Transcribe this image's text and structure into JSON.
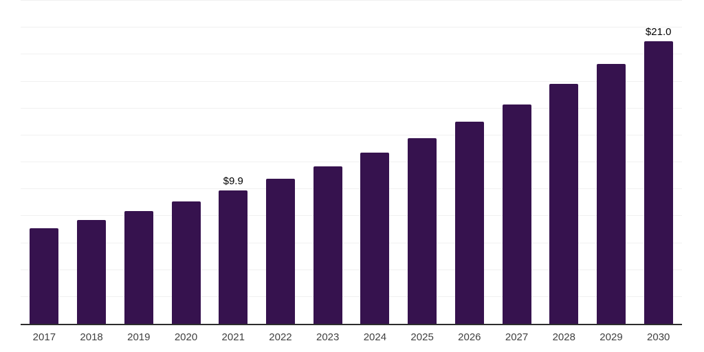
{
  "chart_data": {
    "type": "bar",
    "title": "",
    "xlabel": "",
    "ylabel": "",
    "categories": [
      "2017",
      "2018",
      "2019",
      "2020",
      "2021",
      "2022",
      "2023",
      "2024",
      "2025",
      "2026",
      "2027",
      "2028",
      "2029",
      "2030"
    ],
    "values": [
      7.1,
      7.7,
      8.4,
      9.1,
      9.9,
      10.8,
      11.7,
      12.7,
      13.8,
      15.0,
      16.3,
      17.8,
      19.3,
      21.0
    ],
    "data_labels": [
      {
        "category": "2021",
        "text": "$9.9"
      },
      {
        "category": "2030",
        "text": "$21.0"
      }
    ],
    "ylim": [
      0,
      24
    ],
    "grid_step": 2,
    "grid": "on",
    "legend": "none",
    "colors": {
      "bar": "#36124e",
      "grid": "#f0f0f0",
      "axis": "#2d2d2d",
      "tick_label": "#404040",
      "data_label": "#000000",
      "background": "#ffffff"
    }
  }
}
